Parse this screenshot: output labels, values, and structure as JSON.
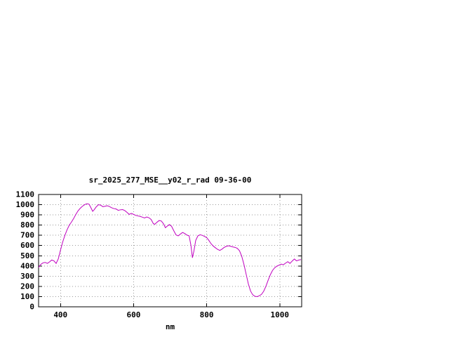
{
  "page": {
    "background": "#ffffff"
  },
  "chart_data": {
    "type": "line",
    "title": "sr_2025_277_MSE__y02_r_rad 09-36-00",
    "xlabel": "nm",
    "ylabel": "",
    "xlim": [
      340,
      1060
    ],
    "ylim": [
      0,
      1100
    ],
    "xticks": [
      400,
      600,
      800,
      1000
    ],
    "yticks": [
      0,
      100,
      200,
      300,
      400,
      500,
      600,
      700,
      800,
      900,
      1000,
      1100
    ],
    "grid": true,
    "legend": "none",
    "line_color": "#c000c0",
    "axis_color": "#000000",
    "grid_color": "#999999",
    "series": [
      {
        "points": [
          [
            340,
            385
          ],
          [
            346,
            415
          ],
          [
            352,
            430
          ],
          [
            358,
            435
          ],
          [
            364,
            425
          ],
          [
            370,
            440
          ],
          [
            376,
            458
          ],
          [
            382,
            450
          ],
          [
            388,
            425
          ],
          [
            394,
            470
          ],
          [
            400,
            555
          ],
          [
            406,
            635
          ],
          [
            412,
            700
          ],
          [
            418,
            755
          ],
          [
            424,
            800
          ],
          [
            430,
            830
          ],
          [
            436,
            865
          ],
          [
            442,
            905
          ],
          [
            448,
            940
          ],
          [
            454,
            965
          ],
          [
            460,
            985
          ],
          [
            466,
            1000
          ],
          [
            472,
            1010
          ],
          [
            478,
            1005
          ],
          [
            484,
            965
          ],
          [
            488,
            935
          ],
          [
            492,
            950
          ],
          [
            498,
            980
          ],
          [
            504,
            1000
          ],
          [
            510,
            995
          ],
          [
            516,
            980
          ],
          [
            522,
            985
          ],
          [
            528,
            990
          ],
          [
            534,
            982
          ],
          [
            540,
            970
          ],
          [
            546,
            962
          ],
          [
            552,
            958
          ],
          [
            558,
            945
          ],
          [
            564,
            950
          ],
          [
            570,
            952
          ],
          [
            576,
            942
          ],
          [
            582,
            925
          ],
          [
            588,
            905
          ],
          [
            594,
            915
          ],
          [
            600,
            905
          ],
          [
            606,
            895
          ],
          [
            612,
            890
          ],
          [
            618,
            885
          ],
          [
            624,
            878
          ],
          [
            630,
            870
          ],
          [
            636,
            880
          ],
          [
            642,
            872
          ],
          [
            648,
            855
          ],
          [
            654,
            815
          ],
          [
            658,
            808
          ],
          [
            664,
            828
          ],
          [
            670,
            845
          ],
          [
            676,
            840
          ],
          [
            682,
            812
          ],
          [
            687,
            775
          ],
          [
            692,
            790
          ],
          [
            698,
            805
          ],
          [
            704,
            788
          ],
          [
            710,
            745
          ],
          [
            716,
            705
          ],
          [
            722,
            695
          ],
          [
            728,
            712
          ],
          [
            734,
            728
          ],
          [
            740,
            718
          ],
          [
            746,
            702
          ],
          [
            752,
            695
          ],
          [
            757,
            600
          ],
          [
            761,
            480
          ],
          [
            765,
            545
          ],
          [
            770,
            650
          ],
          [
            776,
            695
          ],
          [
            782,
            705
          ],
          [
            788,
            700
          ],
          [
            794,
            690
          ],
          [
            800,
            678
          ],
          [
            806,
            650
          ],
          [
            812,
            618
          ],
          [
            818,
            595
          ],
          [
            824,
            578
          ],
          [
            830,
            562
          ],
          [
            836,
            552
          ],
          [
            842,
            565
          ],
          [
            848,
            582
          ],
          [
            854,
            592
          ],
          [
            860,
            598
          ],
          [
            866,
            592
          ],
          [
            872,
            586
          ],
          [
            878,
            582
          ],
          [
            884,
            572
          ],
          [
            890,
            548
          ],
          [
            896,
            495
          ],
          [
            902,
            415
          ],
          [
            908,
            320
          ],
          [
            914,
            225
          ],
          [
            920,
            155
          ],
          [
            926,
            118
          ],
          [
            932,
            103
          ],
          [
            938,
            100
          ],
          [
            944,
            108
          ],
          [
            950,
            122
          ],
          [
            956,
            152
          ],
          [
            962,
            200
          ],
          [
            968,
            258
          ],
          [
            974,
            312
          ],
          [
            980,
            355
          ],
          [
            986,
            382
          ],
          [
            992,
            398
          ],
          [
            998,
            408
          ],
          [
            1004,
            418
          ],
          [
            1010,
            412
          ],
          [
            1016,
            428
          ],
          [
            1022,
            442
          ],
          [
            1028,
            425
          ],
          [
            1034,
            448
          ],
          [
            1040,
            468
          ],
          [
            1046,
            450
          ],
          [
            1052,
            458
          ],
          [
            1058,
            462
          ]
        ]
      }
    ]
  }
}
